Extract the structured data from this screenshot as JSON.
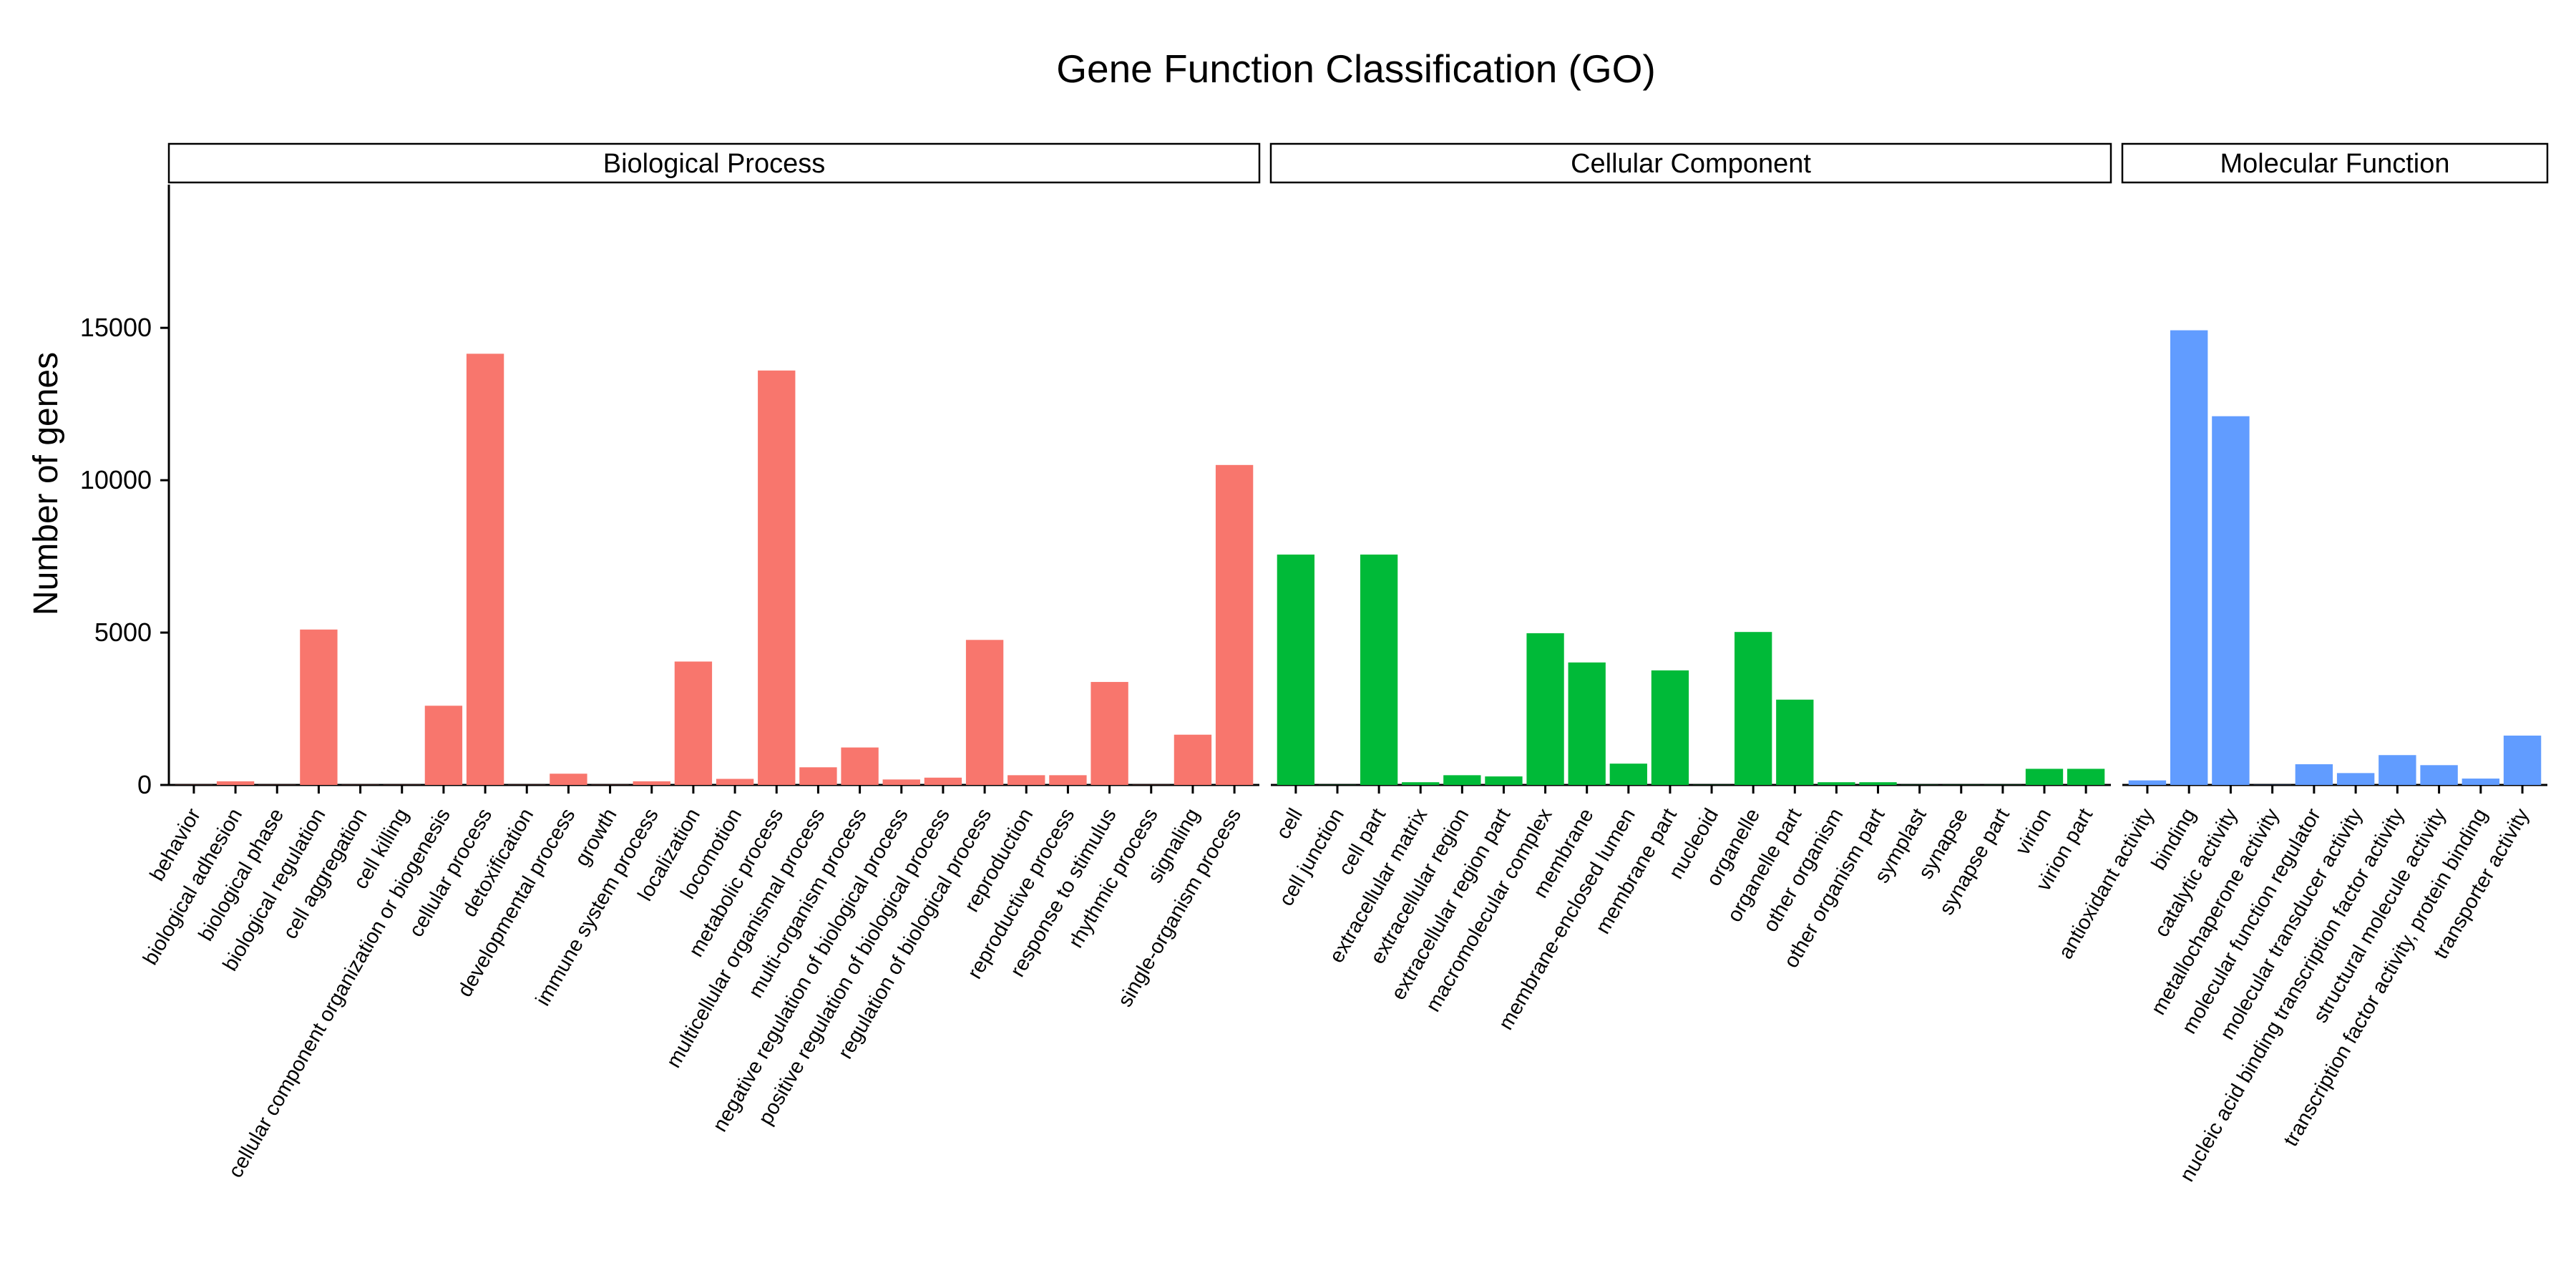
{
  "chart_data": {
    "type": "bar",
    "title": "Gene Function Classification (GO)",
    "ylabel": "Number of genes",
    "xlabel": "",
    "ylim": [
      0,
      19700
    ],
    "yticks": [
      0,
      5000,
      10000,
      15000
    ],
    "grid": false,
    "legend": "none",
    "panels": [
      {
        "name": "Biological Process",
        "color": "#F8766D",
        "categories": [
          "behavior",
          "biological adhesion",
          "biological phase",
          "biological regulation",
          "cell aggregation",
          "cell killing",
          "cellular component organization or biogenesis",
          "cellular process",
          "detoxification",
          "developmental process",
          "growth",
          "immune system process",
          "localization",
          "locomotion",
          "metabolic process",
          "multicellular organismal process",
          "multi-organism process",
          "negative regulation of biological process",
          "positive regulation of biological process",
          "regulation of biological process",
          "reproduction",
          "reproductive process",
          "response to stimulus",
          "rhythmic process",
          "signaling",
          "single-organism process"
        ],
        "values": [
          5,
          120,
          5,
          5100,
          5,
          5,
          2600,
          14150,
          5,
          370,
          5,
          120,
          4050,
          200,
          13600,
          580,
          1230,
          180,
          240,
          4760,
          320,
          320,
          3380,
          5,
          1650,
          10500
        ]
      },
      {
        "name": "Cellular Component",
        "color": "#00BA38",
        "categories": [
          "cell",
          "cell junction",
          "cell part",
          "extracellular matrix",
          "extracellular region",
          "extracellular region part",
          "macromolecular complex",
          "membrane",
          "membrane-enclosed lumen",
          "membrane part",
          "nucleoid",
          "organelle",
          "organelle part",
          "other organism",
          "other organism part",
          "symplast",
          "synapse",
          "synapse part",
          "virion",
          "virion part"
        ],
        "values": [
          7560,
          5,
          7560,
          90,
          320,
          280,
          4980,
          4020,
          700,
          3760,
          5,
          5020,
          2800,
          90,
          90,
          5,
          5,
          5,
          530,
          530
        ]
      },
      {
        "name": "Molecular Function",
        "color": "#619CFF",
        "categories": [
          "antioxidant activity",
          "binding",
          "catalytic activity",
          "metallochaperone activity",
          "molecular function regulator",
          "molecular transducer activity",
          "nucleic acid binding transcription factor activity",
          "structural molecule activity",
          "transcription factor activity, protein binding",
          "transporter activity"
        ],
        "values": [
          150,
          14920,
          12100,
          5,
          680,
          390,
          980,
          650,
          210,
          1620
        ]
      }
    ]
  }
}
